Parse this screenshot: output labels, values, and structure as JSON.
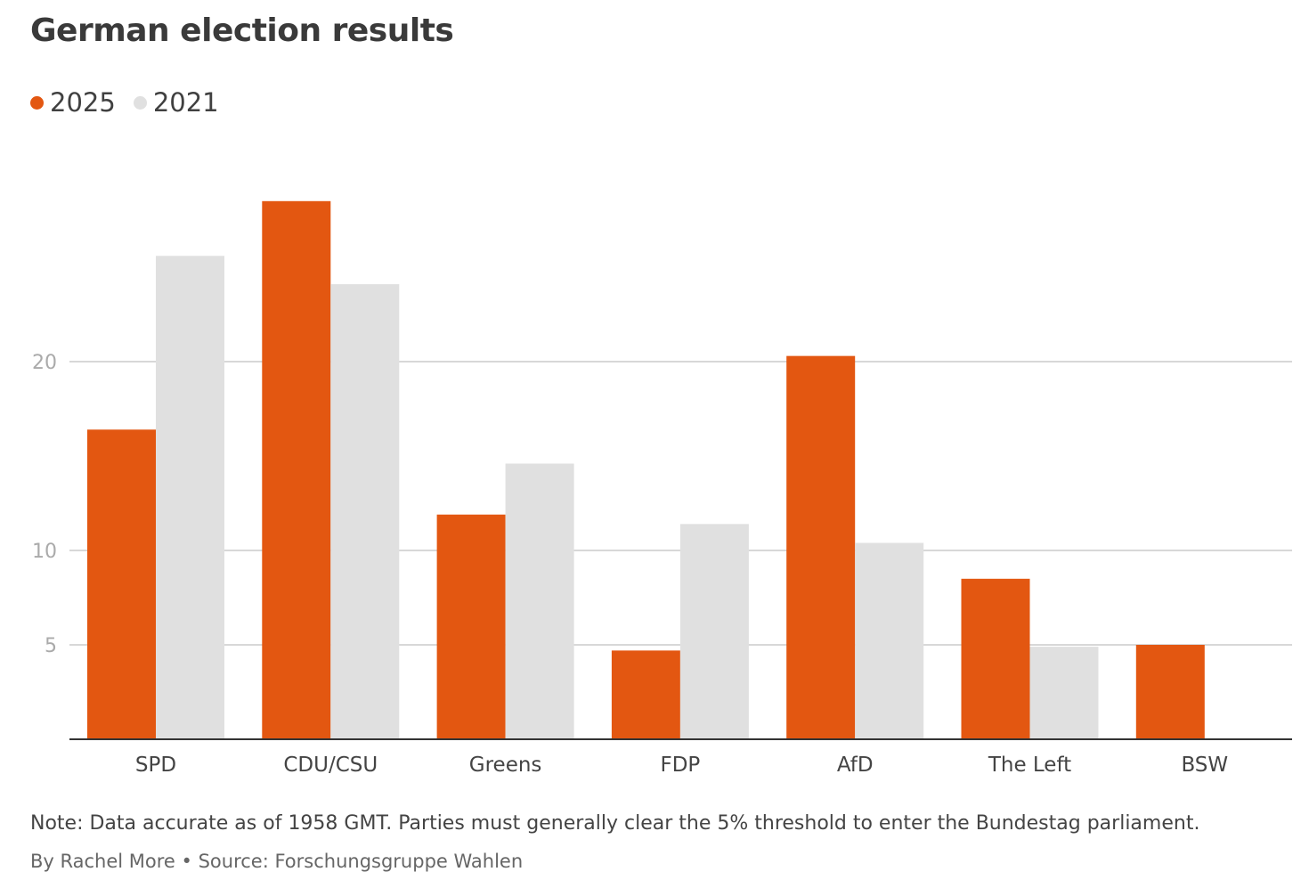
{
  "chart_data": {
    "type": "bar",
    "title": "German election results",
    "categories": [
      "SPD",
      "CDU/CSU",
      "Greens",
      "FDP",
      "AfD",
      "The Left",
      "BSW"
    ],
    "series": [
      {
        "name": "2025",
        "color": "#e35711",
        "values": [
          16.4,
          28.5,
          11.9,
          4.7,
          20.3,
          8.5,
          5.0
        ]
      },
      {
        "name": "2021",
        "color": "#e0e0e0",
        "values": [
          25.6,
          24.1,
          14.6,
          11.4,
          10.4,
          4.9,
          null
        ]
      }
    ],
    "yticks": [
      5,
      10,
      20
    ],
    "ylim": [
      0,
      31
    ],
    "grid": true,
    "legend_position": "top-left",
    "note": "Note: Data accurate as of 1958 GMT. Parties must generally clear the 5% threshold to enter the Bundestag parliament.",
    "source": "By Rachel More • Source: Forschungsgruppe Wahlen"
  }
}
